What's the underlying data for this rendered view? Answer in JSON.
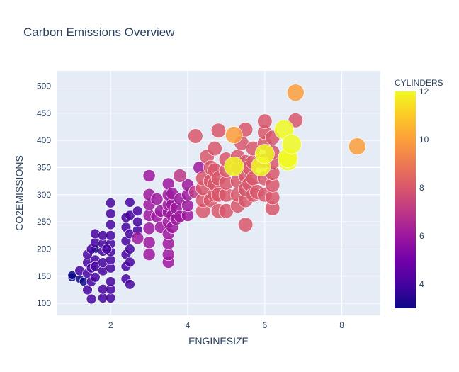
{
  "chart_data": {
    "type": "scatter",
    "title": "Carbon Emissions Overview",
    "xlabel": "ENGINESIZE",
    "ylabel": "CO2EMISSIONS",
    "xlim": [
      0.6,
      9.0
    ],
    "ylim": [
      78,
      528
    ],
    "x_ticks": [
      2,
      4,
      6,
      8
    ],
    "y_ticks": [
      100,
      150,
      200,
      250,
      300,
      350,
      400,
      450,
      500
    ],
    "grid": true,
    "size_by": "CYLINDERS",
    "colorbar": {
      "title": "CYLINDERS",
      "range": [
        3,
        12
      ],
      "ticks": [
        4,
        6,
        8,
        10,
        12
      ],
      "colorscale": [
        "#0d0887",
        "#46039f",
        "#7201a8",
        "#9c179e",
        "#bd3786",
        "#d8576b",
        "#ed7953",
        "#fb9f3a",
        "#fdca26",
        "#f0f921"
      ]
    },
    "points": [
      {
        "x": 1.0,
        "y": 148,
        "c": 3
      },
      {
        "x": 1.0,
        "y": 152,
        "c": 3
      },
      {
        "x": 1.2,
        "y": 145,
        "c": 3
      },
      {
        "x": 1.2,
        "y": 160,
        "c": 4
      },
      {
        "x": 1.3,
        "y": 140,
        "c": 3
      },
      {
        "x": 1.4,
        "y": 125,
        "c": 4
      },
      {
        "x": 1.4,
        "y": 155,
        "c": 4
      },
      {
        "x": 1.4,
        "y": 175,
        "c": 4
      },
      {
        "x": 1.4,
        "y": 190,
        "c": 4
      },
      {
        "x": 1.5,
        "y": 108,
        "c": 4
      },
      {
        "x": 1.5,
        "y": 140,
        "c": 4
      },
      {
        "x": 1.5,
        "y": 165,
        "c": 4
      },
      {
        "x": 1.5,
        "y": 200,
        "c": 4
      },
      {
        "x": 1.6,
        "y": 148,
        "c": 4
      },
      {
        "x": 1.6,
        "y": 180,
        "c": 4
      },
      {
        "x": 1.6,
        "y": 212,
        "c": 4
      },
      {
        "x": 1.6,
        "y": 228,
        "c": 4
      },
      {
        "x": 1.6,
        "y": 168,
        "c": 4
      },
      {
        "x": 1.8,
        "y": 110,
        "c": 4
      },
      {
        "x": 1.8,
        "y": 126,
        "c": 4
      },
      {
        "x": 1.8,
        "y": 160,
        "c": 4
      },
      {
        "x": 1.8,
        "y": 175,
        "c": 4
      },
      {
        "x": 1.8,
        "y": 196,
        "c": 4
      },
      {
        "x": 1.8,
        "y": 210,
        "c": 4
      },
      {
        "x": 1.8,
        "y": 225,
        "c": 4
      },
      {
        "x": 2.0,
        "y": 110,
        "c": 4
      },
      {
        "x": 2.0,
        "y": 126,
        "c": 4
      },
      {
        "x": 2.0,
        "y": 140,
        "c": 4
      },
      {
        "x": 2.0,
        "y": 165,
        "c": 4
      },
      {
        "x": 2.0,
        "y": 180,
        "c": 4
      },
      {
        "x": 2.0,
        "y": 195,
        "c": 4
      },
      {
        "x": 2.0,
        "y": 210,
        "c": 4
      },
      {
        "x": 2.0,
        "y": 225,
        "c": 4
      },
      {
        "x": 2.0,
        "y": 245,
        "c": 4
      },
      {
        "x": 2.0,
        "y": 265,
        "c": 4
      },
      {
        "x": 2.0,
        "y": 285,
        "c": 4
      },
      {
        "x": 1.6,
        "y": 200,
        "c": 3
      },
      {
        "x": 1.9,
        "y": 200,
        "c": 4
      },
      {
        "x": 2.4,
        "y": 145,
        "c": 4
      },
      {
        "x": 2.4,
        "y": 168,
        "c": 4
      },
      {
        "x": 2.4,
        "y": 190,
        "c": 4
      },
      {
        "x": 2.4,
        "y": 215,
        "c": 4
      },
      {
        "x": 2.4,
        "y": 240,
        "c": 4
      },
      {
        "x": 2.4,
        "y": 258,
        "c": 4
      },
      {
        "x": 2.5,
        "y": 135,
        "c": 4
      },
      {
        "x": 2.5,
        "y": 176,
        "c": 4
      },
      {
        "x": 2.5,
        "y": 200,
        "c": 4
      },
      {
        "x": 2.5,
        "y": 228,
        "c": 4
      },
      {
        "x": 2.5,
        "y": 262,
        "c": 4
      },
      {
        "x": 2.5,
        "y": 286,
        "c": 4
      },
      {
        "x": 2.7,
        "y": 235,
        "c": 4
      },
      {
        "x": 2.7,
        "y": 250,
        "c": 4
      },
      {
        "x": 2.7,
        "y": 270,
        "c": 4
      },
      {
        "x": 2.7,
        "y": 220,
        "c": 6
      },
      {
        "x": 3.0,
        "y": 190,
        "c": 6
      },
      {
        "x": 3.0,
        "y": 212,
        "c": 6
      },
      {
        "x": 3.0,
        "y": 238,
        "c": 6
      },
      {
        "x": 3.0,
        "y": 262,
        "c": 6
      },
      {
        "x": 3.0,
        "y": 282,
        "c": 6
      },
      {
        "x": 3.0,
        "y": 300,
        "c": 6
      },
      {
        "x": 3.0,
        "y": 335,
        "c": 6
      },
      {
        "x": 3.2,
        "y": 260,
        "c": 6
      },
      {
        "x": 3.2,
        "y": 292,
        "c": 6
      },
      {
        "x": 3.3,
        "y": 240,
        "c": 6
      },
      {
        "x": 3.3,
        "y": 270,
        "c": 6
      },
      {
        "x": 3.5,
        "y": 176,
        "c": 6
      },
      {
        "x": 3.5,
        "y": 190,
        "c": 6
      },
      {
        "x": 3.5,
        "y": 210,
        "c": 6
      },
      {
        "x": 3.5,
        "y": 228,
        "c": 6
      },
      {
        "x": 3.5,
        "y": 250,
        "c": 6
      },
      {
        "x": 3.5,
        "y": 268,
        "c": 6
      },
      {
        "x": 3.5,
        "y": 282,
        "c": 6
      },
      {
        "x": 3.5,
        "y": 300,
        "c": 6
      },
      {
        "x": 3.5,
        "y": 320,
        "c": 6
      },
      {
        "x": 3.6,
        "y": 240,
        "c": 6
      },
      {
        "x": 3.6,
        "y": 262,
        "c": 6
      },
      {
        "x": 3.6,
        "y": 282,
        "c": 6
      },
      {
        "x": 3.6,
        "y": 302,
        "c": 6
      },
      {
        "x": 3.7,
        "y": 255,
        "c": 6
      },
      {
        "x": 3.7,
        "y": 275,
        "c": 6
      },
      {
        "x": 3.8,
        "y": 260,
        "c": 6
      },
      {
        "x": 3.8,
        "y": 292,
        "c": 6
      },
      {
        "x": 3.8,
        "y": 335,
        "c": 7
      },
      {
        "x": 4.0,
        "y": 262,
        "c": 6
      },
      {
        "x": 4.0,
        "y": 280,
        "c": 6
      },
      {
        "x": 4.0,
        "y": 300,
        "c": 6
      },
      {
        "x": 4.0,
        "y": 318,
        "c": 6
      },
      {
        "x": 4.2,
        "y": 305,
        "c": 7
      },
      {
        "x": 4.3,
        "y": 350,
        "c": 6
      },
      {
        "x": 4.2,
        "y": 408,
        "c": 8
      },
      {
        "x": 4.4,
        "y": 270,
        "c": 8
      },
      {
        "x": 4.4,
        "y": 290,
        "c": 8
      },
      {
        "x": 4.4,
        "y": 312,
        "c": 8
      },
      {
        "x": 4.4,
        "y": 330,
        "c": 8
      },
      {
        "x": 4.5,
        "y": 370,
        "c": 8
      },
      {
        "x": 4.6,
        "y": 290,
        "c": 8
      },
      {
        "x": 4.6,
        "y": 325,
        "c": 8
      },
      {
        "x": 4.6,
        "y": 350,
        "c": 8
      },
      {
        "x": 4.7,
        "y": 300,
        "c": 8
      },
      {
        "x": 4.7,
        "y": 320,
        "c": 8
      },
      {
        "x": 4.7,
        "y": 345,
        "c": 8
      },
      {
        "x": 4.7,
        "y": 385,
        "c": 8
      },
      {
        "x": 4.8,
        "y": 270,
        "c": 8
      },
      {
        "x": 4.8,
        "y": 300,
        "c": 8
      },
      {
        "x": 4.8,
        "y": 330,
        "c": 8
      },
      {
        "x": 4.8,
        "y": 418,
        "c": 8
      },
      {
        "x": 5.0,
        "y": 270,
        "c": 8
      },
      {
        "x": 5.0,
        "y": 300,
        "c": 8
      },
      {
        "x": 5.0,
        "y": 322,
        "c": 8
      },
      {
        "x": 5.0,
        "y": 345,
        "c": 8
      },
      {
        "x": 5.0,
        "y": 365,
        "c": 8
      },
      {
        "x": 5.2,
        "y": 410,
        "c": 10
      },
      {
        "x": 5.3,
        "y": 280,
        "c": 8
      },
      {
        "x": 5.3,
        "y": 300,
        "c": 8
      },
      {
        "x": 5.3,
        "y": 325,
        "c": 8
      },
      {
        "x": 5.3,
        "y": 350,
        "c": 8
      },
      {
        "x": 5.3,
        "y": 370,
        "c": 8
      },
      {
        "x": 5.4,
        "y": 395,
        "c": 8
      },
      {
        "x": 5.5,
        "y": 245,
        "c": 8
      },
      {
        "x": 5.5,
        "y": 290,
        "c": 8
      },
      {
        "x": 5.5,
        "y": 310,
        "c": 8
      },
      {
        "x": 5.5,
        "y": 335,
        "c": 8
      },
      {
        "x": 5.5,
        "y": 360,
        "c": 8
      },
      {
        "x": 5.5,
        "y": 420,
        "c": 8
      },
      {
        "x": 5.6,
        "y": 320,
        "c": 8
      },
      {
        "x": 5.6,
        "y": 350,
        "c": 8
      },
      {
        "x": 5.7,
        "y": 300,
        "c": 8
      },
      {
        "x": 5.7,
        "y": 330,
        "c": 8
      },
      {
        "x": 5.7,
        "y": 360,
        "c": 8
      },
      {
        "x": 5.7,
        "y": 385,
        "c": 8
      },
      {
        "x": 5.8,
        "y": 305,
        "c": 8
      },
      {
        "x": 5.9,
        "y": 362,
        "c": 8
      },
      {
        "x": 6.0,
        "y": 300,
        "c": 8
      },
      {
        "x": 6.0,
        "y": 330,
        "c": 8
      },
      {
        "x": 6.0,
        "y": 362,
        "c": 8
      },
      {
        "x": 6.0,
        "y": 395,
        "c": 8
      },
      {
        "x": 6.0,
        "y": 415,
        "c": 8
      },
      {
        "x": 6.0,
        "y": 435,
        "c": 8
      },
      {
        "x": 6.2,
        "y": 275,
        "c": 8
      },
      {
        "x": 6.2,
        "y": 295,
        "c": 8
      },
      {
        "x": 6.2,
        "y": 318,
        "c": 8
      },
      {
        "x": 6.2,
        "y": 340,
        "c": 8
      },
      {
        "x": 6.2,
        "y": 360,
        "c": 8
      },
      {
        "x": 6.2,
        "y": 378,
        "c": 8
      },
      {
        "x": 6.2,
        "y": 405,
        "c": 8
      },
      {
        "x": 5.2,
        "y": 352,
        "c": 12
      },
      {
        "x": 5.9,
        "y": 352,
        "c": 12
      },
      {
        "x": 6.0,
        "y": 375,
        "c": 12
      },
      {
        "x": 6.5,
        "y": 420,
        "c": 12
      },
      {
        "x": 6.6,
        "y": 362,
        "c": 12
      },
      {
        "x": 6.6,
        "y": 368,
        "c": 12
      },
      {
        "x": 6.7,
        "y": 393,
        "c": 12
      },
      {
        "x": 6.8,
        "y": 488,
        "c": 10
      },
      {
        "x": 6.8,
        "y": 437,
        "c": 8
      },
      {
        "x": 8.4,
        "y": 389,
        "c": 10
      }
    ]
  }
}
